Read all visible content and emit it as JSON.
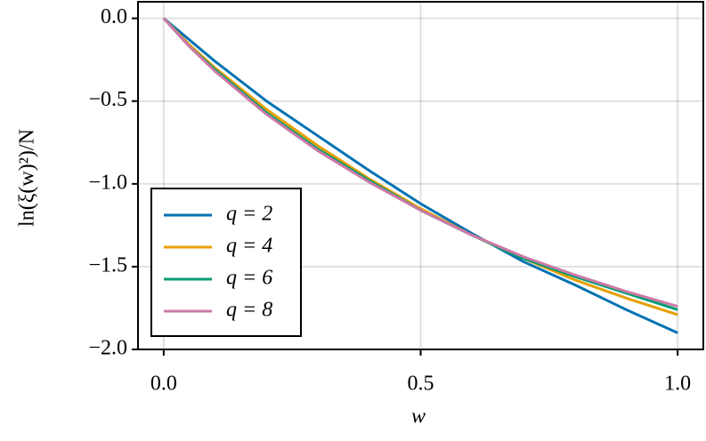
{
  "chart_data": {
    "type": "line",
    "x_label": "w",
    "y_label": "ln(ξ(w)²)/N",
    "x": [
      0,
      0.05,
      0.1,
      0.2,
      0.3,
      0.4,
      0.5,
      0.6,
      0.7,
      0.8,
      0.9,
      1.0
    ],
    "series": [
      {
        "name": "q = 2",
        "color": "#0072b2",
        "values": [
          0,
          -0.13,
          -0.26,
          -0.5,
          -0.71,
          -0.92,
          -1.12,
          -1.3,
          -1.47,
          -1.61,
          -1.76,
          -1.9
        ]
      },
      {
        "name": "q = 4",
        "color": "#e69f00",
        "values": [
          0,
          -0.16,
          -0.3,
          -0.55,
          -0.77,
          -0.97,
          -1.15,
          -1.31,
          -1.45,
          -1.58,
          -1.69,
          -1.79
        ]
      },
      {
        "name": "q = 6",
        "color": "#009e73",
        "values": [
          0,
          -0.17,
          -0.31,
          -0.57,
          -0.79,
          -0.98,
          -1.16,
          -1.31,
          -1.45,
          -1.56,
          -1.66,
          -1.76
        ]
      },
      {
        "name": "q = 8",
        "color": "#cc79a7",
        "values": [
          0,
          -0.17,
          -0.32,
          -0.58,
          -0.8,
          -0.99,
          -1.16,
          -1.31,
          -1.44,
          -1.55,
          -1.65,
          -1.74
        ]
      }
    ],
    "xlim": [
      -0.05,
      1.05
    ],
    "ylim": [
      -2.0,
      0.1
    ],
    "xticks": [
      {
        "value": 0,
        "label": "0.0"
      },
      {
        "value": 0.5,
        "label": "0.5"
      },
      {
        "value": 1,
        "label": "1.0"
      }
    ],
    "yticks": [
      {
        "value": 0,
        "label": "0.0"
      },
      {
        "value": -0.5,
        "label": "−0.5"
      },
      {
        "value": -1,
        "label": "−1.0"
      },
      {
        "value": -1.5,
        "label": "−1.5"
      },
      {
        "value": -2,
        "label": "−2.0"
      }
    ],
    "grid": true,
    "legend": "lower left"
  }
}
